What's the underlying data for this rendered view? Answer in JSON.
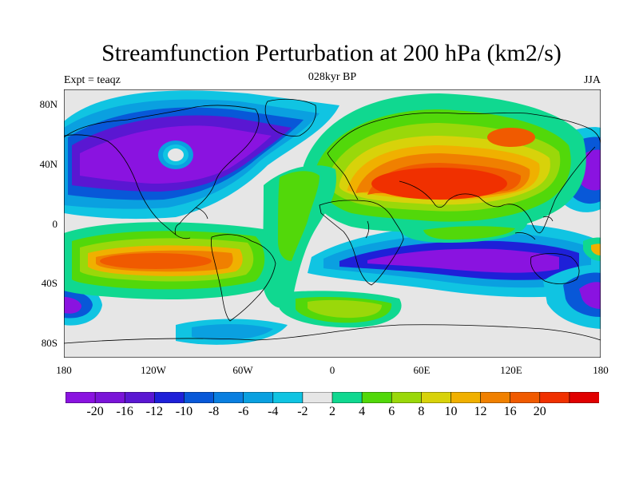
{
  "title": "Streamfunction Perturbation at 200 hPa (km2/s)",
  "left_label": "Expt = teaqz",
  "center_label": "028kyr BP",
  "right_label": "JJA",
  "lat_labels": [
    "80N",
    "40N",
    "0",
    "40S",
    "80S"
  ],
  "lon_labels": [
    "180",
    "120W",
    "60W",
    "0",
    "60E",
    "120E",
    "180"
  ],
  "colorbar": {
    "colors": [
      "#8a13e0",
      "#7a14d8",
      "#5a17d2",
      "#1e20d8",
      "#0858d8",
      "#0a7fe0",
      "#0aa0e0",
      "#10c4e2",
      "#e6e6e6",
      "#10d890",
      "#52d80a",
      "#9ad80a",
      "#d8d20a",
      "#f0b000",
      "#f08000",
      "#f05a00",
      "#f03000",
      "#e00000"
    ],
    "labels": [
      "-20",
      "-16",
      "-12",
      "-10",
      "-8",
      "-6",
      "-4",
      "-2",
      "2",
      "4",
      "6",
      "8",
      "10",
      "12",
      "16",
      "20"
    ]
  }
}
